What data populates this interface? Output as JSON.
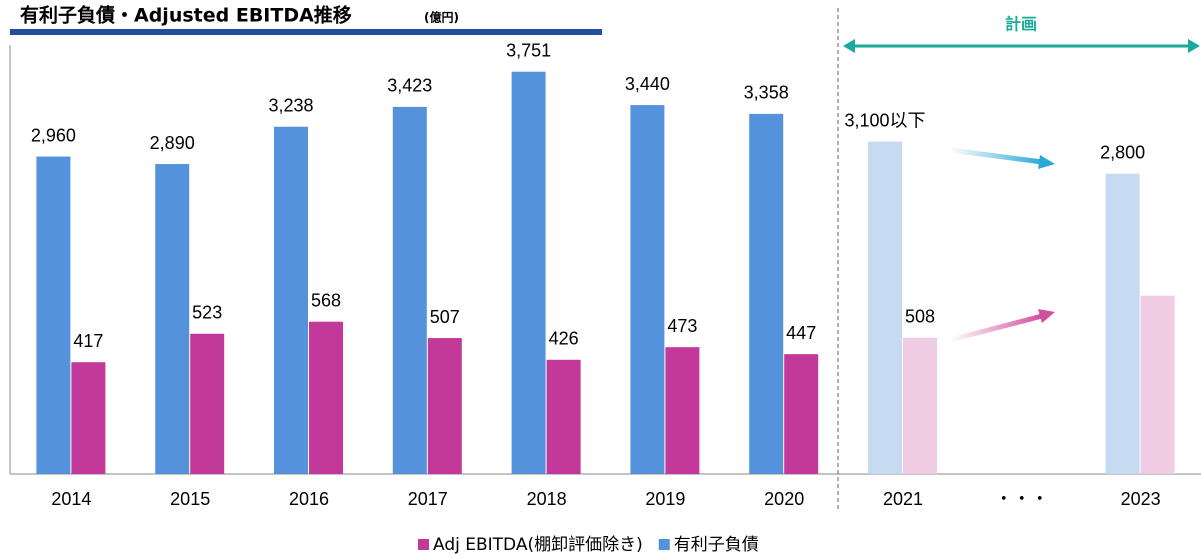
{
  "chart_data": {
    "type": "bar",
    "title": "有利子負債・Adjusted EBITDA推移",
    "subtitle": "(億円)",
    "annotation": "計画",
    "categories": [
      "2014",
      "2015",
      "2016",
      "2017",
      "2018",
      "2019",
      "2020",
      "2021",
      "・・・",
      "2023"
    ],
    "series": [
      {
        "name": "Adj EBITDA(棚卸評価除き)",
        "color": "#c2399a",
        "axis": "y2",
        "colors": [
          "#c2399a",
          "#c2399a",
          "#c2399a",
          "#c2399a",
          "#c2399a",
          "#c2399a",
          "#c2399a",
          "#f0cde4",
          null,
          "#f0cde4"
        ],
        "values": [
          417,
          523,
          568,
          507,
          426,
          473,
          447,
          508,
          null,
          665
        ],
        "value_labels": [
          "417",
          "523",
          "568",
          "507",
          "426",
          "473",
          "447",
          "508",
          null,
          null
        ]
      },
      {
        "name": "有利子負債",
        "color": "#5592dc",
        "colors": [
          "#5592dc",
          "#5592dc",
          "#5592dc",
          "#5592dc",
          "#5592dc",
          "#5592dc",
          "#5592dc",
          "#c6daf2",
          null,
          "#c6daf2"
        ],
        "values": [
          2960,
          2890,
          3238,
          3423,
          3751,
          3440,
          3358,
          3100,
          null,
          2800
        ],
        "value_labels": [
          "2,960",
          "2,890",
          "3,238",
          "3,423",
          "3,751",
          "3,440",
          "3,358",
          "3,100以下",
          null,
          "2,800"
        ]
      }
    ],
    "ylim": [
      0,
      4000
    ],
    "y2lim": [
      0,
      1600
    ],
    "legend": "bottom"
  }
}
